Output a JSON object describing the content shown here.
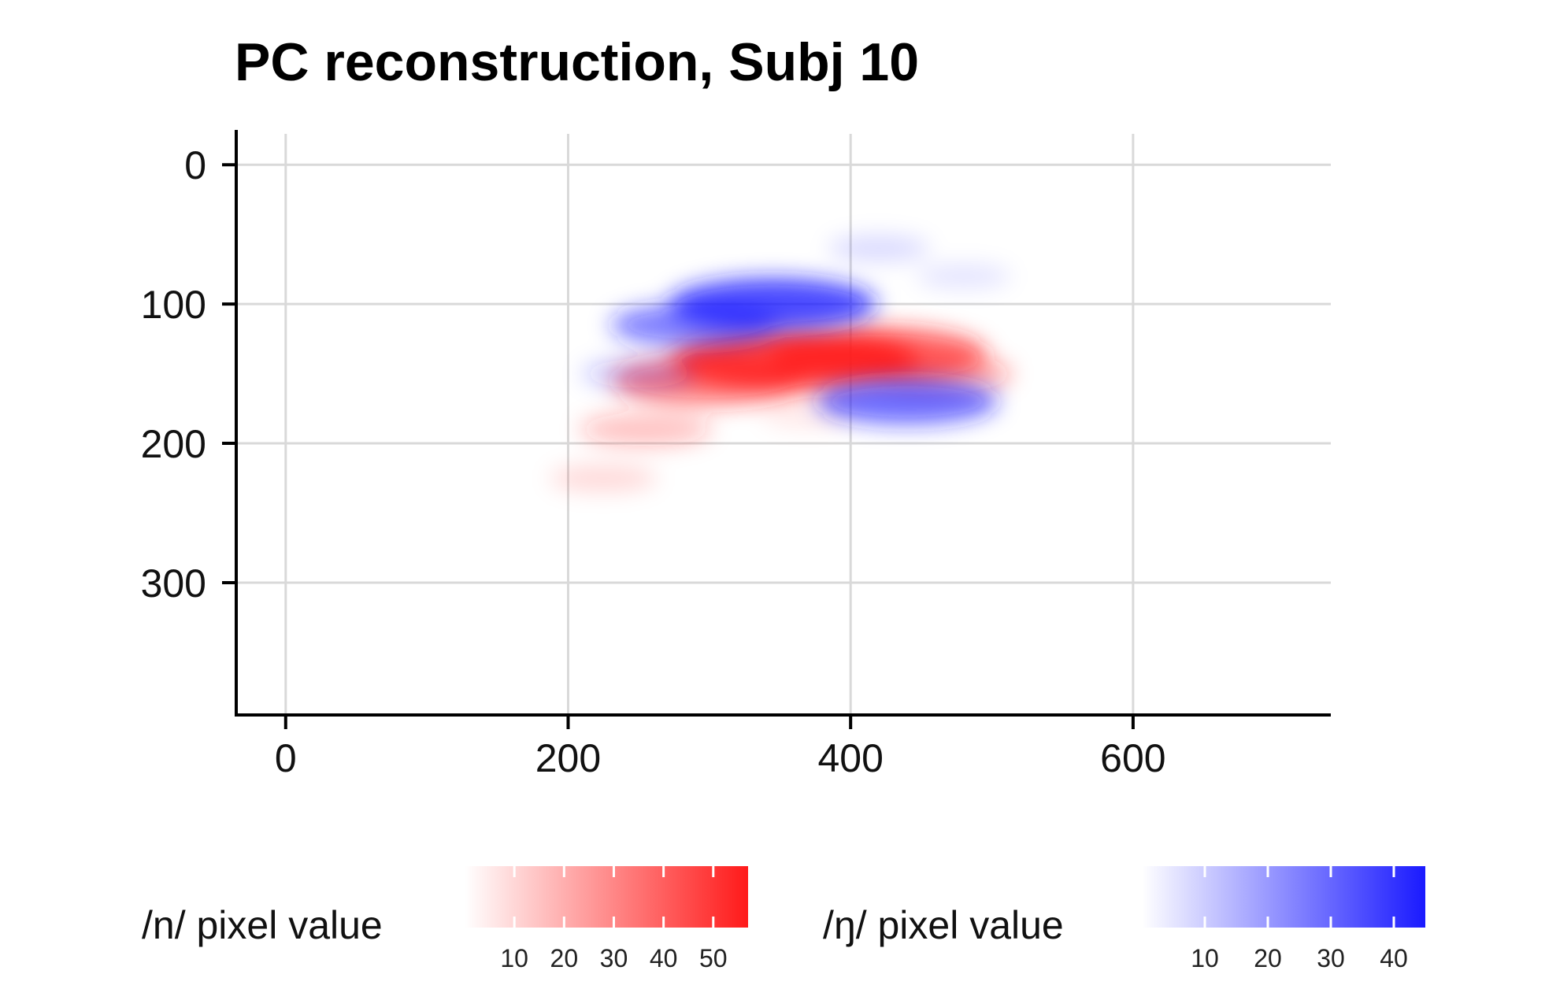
{
  "chart_data": {
    "type": "heatmap",
    "title": "PC reconstruction, Subj 10",
    "xlabel": "",
    "ylabel": "",
    "xlim": [
      -35,
      740
    ],
    "ylim": [
      395,
      -25
    ],
    "y_inverted": true,
    "grid": true,
    "x_ticks": [
      0,
      200,
      400,
      600
    ],
    "y_ticks": [
      0,
      100,
      200,
      300
    ],
    "series": [
      {
        "name": "/n/ pixel value",
        "color": "#ff1a1a",
        "legend_ticks": [
          10,
          20,
          30,
          40,
          50
        ],
        "range": [
          0,
          57
        ],
        "blobs": [
          {
            "cx": 360,
            "cy": 140,
            "value": 55
          },
          {
            "cx": 420,
            "cy": 136,
            "value": 45
          },
          {
            "cx": 300,
            "cy": 155,
            "value": 38
          },
          {
            "cx": 460,
            "cy": 150,
            "value": 25
          },
          {
            "cx": 255,
            "cy": 190,
            "value": 18
          },
          {
            "cx": 225,
            "cy": 225,
            "value": 10
          },
          {
            "cx": 370,
            "cy": 180,
            "value": 6
          }
        ]
      },
      {
        "name": "/ŋ/ pixel value",
        "color": "#1a1aff",
        "legend_ticks": [
          10,
          20,
          30,
          40
        ],
        "range": [
          0,
          45
        ],
        "blobs": [
          {
            "cx": 345,
            "cy": 100,
            "value": 42
          },
          {
            "cx": 290,
            "cy": 115,
            "value": 30
          },
          {
            "cx": 250,
            "cy": 150,
            "value": 12
          },
          {
            "cx": 440,
            "cy": 170,
            "value": 34
          },
          {
            "cx": 420,
            "cy": 60,
            "value": 8
          },
          {
            "cx": 480,
            "cy": 80,
            "value": 6
          }
        ]
      }
    ],
    "legend_position": "bottom"
  }
}
